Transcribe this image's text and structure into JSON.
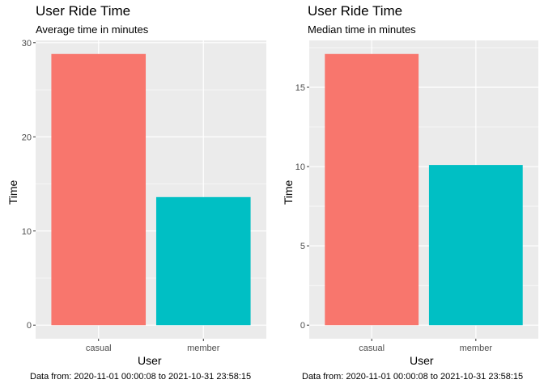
{
  "chart_data": [
    {
      "type": "bar",
      "title": "User Ride Time",
      "subtitle": "Average time in minutes",
      "xlabel": "User",
      "ylabel": "Time",
      "caption": "Data from: 2020-11-01 00:00:08 to 2021-10-31 23:58:15",
      "categories": [
        "casual",
        "member"
      ],
      "values": [
        28.8,
        13.6
      ],
      "colors": [
        "#F8766D",
        "#00BFC4"
      ],
      "ylim": [
        -1.44,
        30.24
      ],
      "yticks": [
        0,
        10,
        20,
        30
      ],
      "grid": true,
      "legend": "none"
    },
    {
      "type": "bar",
      "title": "User Ride Time",
      "subtitle": "Median time in minutes",
      "xlabel": "User",
      "ylabel": "Time",
      "caption": "Data from: 2020-11-01 00:00:08 to 2021-10-31 23:58:15",
      "categories": [
        "casual",
        "member"
      ],
      "values": [
        17.1,
        10.1
      ],
      "colors": [
        "#F8766D",
        "#00BFC4"
      ],
      "ylim": [
        -0.855,
        17.955
      ],
      "yticks": [
        0,
        5,
        10,
        15
      ],
      "grid": true,
      "legend": "none"
    }
  ]
}
